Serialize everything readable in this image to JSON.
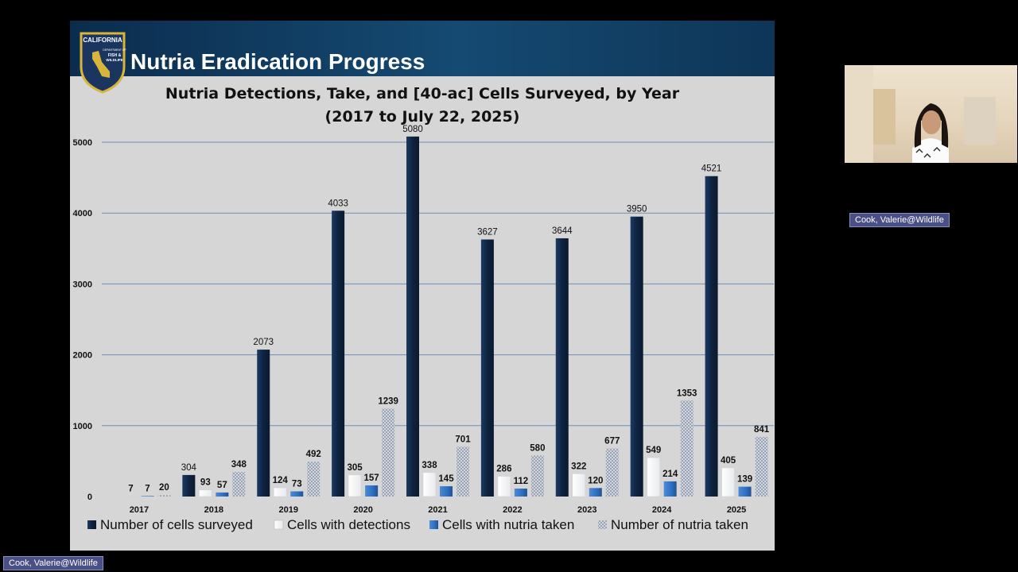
{
  "slide": {
    "title": "Nutria Eradication Progress",
    "logo_text": [
      "CALIFORNIA",
      "DEPARTMENT OF",
      "FISH &",
      "WILDLIFE"
    ]
  },
  "participants": {
    "presenter_badge": "Cook, Valerie@Wildlife",
    "self_badge": "Cook, Valerie@Wildlife"
  },
  "colors": {
    "cells_surveyed": "#0e2340",
    "cells_detections": "#ffffff",
    "cells_taken": "#2e6fc0",
    "nutria_taken": "#c9ced8",
    "gridline": "#6f8fb3",
    "banner": "#0b2c4d"
  },
  "chart_data": {
    "type": "bar",
    "title": [
      "Nutria Detections, Take, and [40-ac] Cells Surveyed, by Year",
      "(2017 to July 22, 2025)"
    ],
    "categories": [
      "2017",
      "2018",
      "2019",
      "2020",
      "2021",
      "2022",
      "2023",
      "2024",
      "2025"
    ],
    "series": [
      {
        "name": "Number of cells surveyed",
        "values": [
          0,
          304,
          2073,
          4033,
          5080,
          3627,
          3644,
          3950,
          4521
        ]
      },
      {
        "name": "Cells with detections",
        "values": [
          7,
          93,
          124,
          305,
          338,
          286,
          322,
          549,
          405
        ]
      },
      {
        "name": "Cells with nutria taken",
        "values": [
          7,
          57,
          73,
          157,
          145,
          112,
          120,
          214,
          139
        ]
      },
      {
        "name": "Number of nutria taken",
        "values": [
          20,
          348,
          492,
          1239,
          701,
          580,
          677,
          1353,
          841
        ]
      }
    ],
    "data_labels": [
      [
        "",
        "7",
        "7",
        "20"
      ],
      [
        "304",
        "93",
        "57",
        "348"
      ],
      [
        "2073",
        "124",
        "73",
        "492"
      ],
      [
        "4033",
        "305",
        "157",
        "1239"
      ],
      [
        "5080",
        "338",
        "145",
        "701"
      ],
      [
        "3627",
        "286",
        "112",
        "580"
      ],
      [
        "3644",
        "322",
        "120",
        "677"
      ],
      [
        "3950",
        "549",
        "214",
        "1353"
      ],
      [
        "4521",
        "405",
        "139",
        "841"
      ]
    ],
    "yticks": [
      0,
      1000,
      2000,
      3000,
      4000,
      5000
    ],
    "ylim": [
      0,
      5000
    ],
    "grid": true,
    "legend": "bottom"
  }
}
